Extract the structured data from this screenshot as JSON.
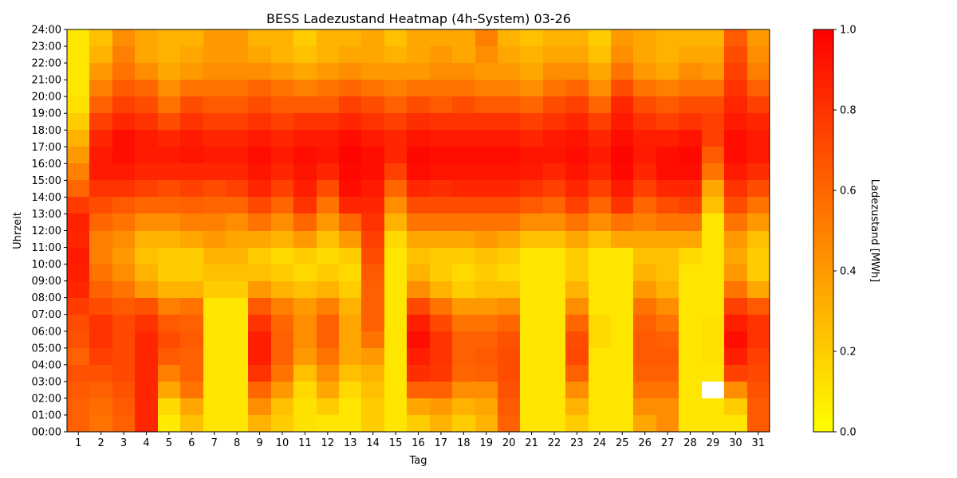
{
  "chart_data": {
    "type": "heatmap",
    "title": "BESS Ladezustand Heatmap (4h-System) 03-26",
    "xlabel": "Tag",
    "ylabel": "Uhrzeit",
    "colorbar_label": "Ladezustand [MWh]",
    "x_categories": [
      "1",
      "2",
      "3",
      "4",
      "5",
      "6",
      "7",
      "8",
      "9",
      "10",
      "11",
      "12",
      "13",
      "14",
      "15",
      "16",
      "17",
      "18",
      "19",
      "20",
      "21",
      "22",
      "23",
      "24",
      "25",
      "26",
      "27",
      "28",
      "29",
      "30",
      "31"
    ],
    "y_categories": [
      "00:00",
      "01:00",
      "02:00",
      "03:00",
      "04:00",
      "05:00",
      "06:00",
      "07:00",
      "08:00",
      "09:00",
      "10:00",
      "11:00",
      "12:00",
      "13:00",
      "14:00",
      "15:00",
      "16:00",
      "17:00",
      "18:00",
      "19:00",
      "20:00",
      "21:00",
      "22:00",
      "23:00",
      "24:00"
    ],
    "value_range": [
      0.0,
      1.0
    ],
    "colorbar_ticks": [
      "0.0",
      "0.2",
      "0.4",
      "0.6",
      "0.8",
      "1.0"
    ],
    "colormap": [
      "#ffff00",
      "#ff8000",
      "#ff0000"
    ],
    "grid": false,
    "legend": "colorbar-right",
    "values": [
      [
        0.62,
        0.62,
        0.65,
        0.68,
        0.62,
        0.68,
        0.7,
        0.77,
        0.85,
        0.88,
        0.9,
        0.85,
        0.87,
        0.77,
        0.6,
        0.5,
        0.4,
        0.3,
        0.2,
        0.12,
        0.1,
        0.1,
        0.1,
        0.1
      ],
      [
        0.55,
        0.58,
        0.62,
        0.68,
        0.75,
        0.8,
        0.8,
        0.7,
        0.62,
        0.55,
        0.5,
        0.5,
        0.6,
        0.7,
        0.8,
        0.9,
        0.9,
        0.85,
        0.75,
        0.62,
        0.5,
        0.4,
        0.3,
        0.25
      ],
      [
        0.62,
        0.65,
        0.68,
        0.72,
        0.72,
        0.72,
        0.72,
        0.65,
        0.55,
        0.45,
        0.4,
        0.45,
        0.55,
        0.65,
        0.8,
        0.9,
        0.95,
        0.95,
        0.85,
        0.75,
        0.65,
        0.55,
        0.5,
        0.45
      ],
      [
        0.85,
        0.85,
        0.85,
        0.85,
        0.85,
        0.85,
        0.8,
        0.68,
        0.4,
        0.3,
        0.25,
        0.3,
        0.45,
        0.6,
        0.75,
        0.85,
        0.9,
        0.9,
        0.8,
        0.7,
        0.6,
        0.45,
        0.35,
        0.35
      ],
      [
        0.08,
        0.15,
        0.35,
        0.5,
        0.65,
        0.7,
        0.65,
        0.5,
        0.3,
        0.2,
        0.2,
        0.3,
        0.45,
        0.6,
        0.7,
        0.85,
        0.9,
        0.85,
        0.7,
        0.55,
        0.45,
        0.35,
        0.3,
        0.3
      ],
      [
        0.25,
        0.35,
        0.55,
        0.62,
        0.62,
        0.65,
        0.62,
        0.55,
        0.3,
        0.2,
        0.2,
        0.35,
        0.5,
        0.62,
        0.75,
        0.85,
        0.92,
        0.9,
        0.8,
        0.7,
        0.55,
        0.4,
        0.35,
        0.3
      ],
      [
        0.1,
        0.1,
        0.1,
        0.1,
        0.1,
        0.1,
        0.1,
        0.1,
        0.2,
        0.25,
        0.3,
        0.4,
        0.5,
        0.6,
        0.7,
        0.85,
        0.9,
        0.85,
        0.75,
        0.65,
        0.55,
        0.45,
        0.4,
        0.4
      ],
      [
        0.1,
        0.1,
        0.1,
        0.1,
        0.1,
        0.1,
        0.1,
        0.1,
        0.2,
        0.25,
        0.3,
        0.35,
        0.45,
        0.6,
        0.75,
        0.85,
        0.9,
        0.85,
        0.75,
        0.65,
        0.55,
        0.45,
        0.4,
        0.4
      ],
      [
        0.3,
        0.45,
        0.6,
        0.8,
        0.88,
        0.88,
        0.8,
        0.65,
        0.4,
        0.25,
        0.2,
        0.35,
        0.55,
        0.72,
        0.85,
        0.92,
        0.95,
        0.9,
        0.8,
        0.7,
        0.6,
        0.45,
        0.35,
        0.3
      ],
      [
        0.2,
        0.25,
        0.4,
        0.55,
        0.62,
        0.62,
        0.6,
        0.5,
        0.3,
        0.2,
        0.15,
        0.3,
        0.45,
        0.6,
        0.75,
        0.85,
        0.9,
        0.85,
        0.75,
        0.65,
        0.55,
        0.4,
        0.3,
        0.3
      ],
      [
        0.12,
        0.12,
        0.15,
        0.25,
        0.4,
        0.45,
        0.45,
        0.4,
        0.25,
        0.15,
        0.2,
        0.4,
        0.6,
        0.8,
        0.88,
        0.92,
        0.95,
        0.9,
        0.8,
        0.65,
        0.5,
        0.35,
        0.25,
        0.2
      ],
      [
        0.1,
        0.2,
        0.35,
        0.45,
        0.55,
        0.62,
        0.62,
        0.5,
        0.3,
        0.2,
        0.15,
        0.25,
        0.4,
        0.55,
        0.7,
        0.85,
        0.92,
        0.9,
        0.8,
        0.65,
        0.55,
        0.4,
        0.3,
        0.3
      ],
      [
        0.1,
        0.1,
        0.15,
        0.25,
        0.35,
        0.35,
        0.35,
        0.3,
        0.2,
        0.15,
        0.2,
        0.4,
        0.6,
        0.85,
        0.95,
        0.97,
        0.98,
        0.95,
        0.85,
        0.75,
        0.6,
        0.45,
        0.35,
        0.3
      ],
      [
        0.2,
        0.2,
        0.25,
        0.3,
        0.4,
        0.55,
        0.62,
        0.62,
        0.62,
        0.65,
        0.7,
        0.75,
        0.8,
        0.85,
        0.9,
        0.95,
        0.95,
        0.9,
        0.8,
        0.7,
        0.55,
        0.4,
        0.35,
        0.35
      ],
      [
        0.1,
        0.1,
        0.1,
        0.1,
        0.1,
        0.1,
        0.1,
        0.1,
        0.1,
        0.1,
        0.1,
        0.15,
        0.3,
        0.45,
        0.6,
        0.75,
        0.85,
        0.85,
        0.75,
        0.62,
        0.5,
        0.4,
        0.3,
        0.25
      ],
      [
        0.2,
        0.35,
        0.62,
        0.82,
        0.88,
        0.95,
        0.88,
        0.72,
        0.45,
        0.3,
        0.25,
        0.35,
        0.55,
        0.7,
        0.85,
        0.95,
        0.97,
        0.92,
        0.82,
        0.7,
        0.55,
        0.4,
        0.35,
        0.35
      ],
      [
        0.3,
        0.4,
        0.62,
        0.78,
        0.8,
        0.8,
        0.72,
        0.55,
        0.3,
        0.2,
        0.2,
        0.35,
        0.55,
        0.7,
        0.82,
        0.92,
        0.95,
        0.9,
        0.8,
        0.65,
        0.55,
        0.45,
        0.4,
        0.35
      ],
      [
        0.2,
        0.3,
        0.45,
        0.6,
        0.62,
        0.62,
        0.55,
        0.4,
        0.2,
        0.15,
        0.2,
        0.35,
        0.55,
        0.7,
        0.85,
        0.92,
        0.95,
        0.9,
        0.8,
        0.7,
        0.55,
        0.45,
        0.35,
        0.35
      ],
      [
        0.3,
        0.35,
        0.45,
        0.62,
        0.65,
        0.62,
        0.55,
        0.4,
        0.25,
        0.2,
        0.25,
        0.4,
        0.55,
        0.7,
        0.85,
        0.92,
        0.95,
        0.9,
        0.8,
        0.65,
        0.5,
        0.4,
        0.45,
        0.5
      ],
      [
        0.62,
        0.65,
        0.68,
        0.7,
        0.7,
        0.68,
        0.6,
        0.45,
        0.25,
        0.15,
        0.2,
        0.35,
        0.55,
        0.7,
        0.85,
        0.92,
        0.95,
        0.9,
        0.8,
        0.65,
        0.5,
        0.4,
        0.35,
        0.3
      ],
      [
        0.1,
        0.1,
        0.1,
        0.1,
        0.1,
        0.1,
        0.1,
        0.1,
        0.1,
        0.1,
        0.1,
        0.25,
        0.45,
        0.65,
        0.8,
        0.9,
        0.92,
        0.85,
        0.75,
        0.6,
        0.45,
        0.35,
        0.3,
        0.25
      ],
      [
        0.1,
        0.1,
        0.1,
        0.1,
        0.1,
        0.1,
        0.1,
        0.1,
        0.1,
        0.1,
        0.1,
        0.25,
        0.45,
        0.6,
        0.75,
        0.85,
        0.92,
        0.9,
        0.8,
        0.7,
        0.55,
        0.45,
        0.35,
        0.3
      ],
      [
        0.2,
        0.3,
        0.45,
        0.62,
        0.72,
        0.7,
        0.6,
        0.45,
        0.3,
        0.2,
        0.2,
        0.35,
        0.55,
        0.75,
        0.85,
        0.92,
        0.95,
        0.92,
        0.85,
        0.75,
        0.6,
        0.45,
        0.35,
        0.3
      ],
      [
        0.1,
        0.1,
        0.1,
        0.1,
        0.1,
        0.15,
        0.15,
        0.1,
        0.1,
        0.1,
        0.1,
        0.25,
        0.45,
        0.6,
        0.75,
        0.85,
        0.9,
        0.85,
        0.75,
        0.6,
        0.45,
        0.35,
        0.25,
        0.2
      ],
      [
        0.1,
        0.1,
        0.1,
        0.1,
        0.1,
        0.1,
        0.1,
        0.1,
        0.1,
        0.1,
        0.1,
        0.35,
        0.55,
        0.8,
        0.9,
        0.97,
        0.98,
        0.95,
        0.9,
        0.85,
        0.7,
        0.55,
        0.45,
        0.4
      ],
      [
        0.35,
        0.45,
        0.55,
        0.62,
        0.65,
        0.65,
        0.62,
        0.55,
        0.4,
        0.3,
        0.25,
        0.35,
        0.5,
        0.6,
        0.75,
        0.85,
        0.9,
        0.88,
        0.8,
        0.7,
        0.55,
        0.4,
        0.35,
        0.35
      ],
      [
        0.45,
        0.45,
        0.55,
        0.62,
        0.65,
        0.62,
        0.55,
        0.45,
        0.3,
        0.25,
        0.25,
        0.35,
        0.55,
        0.7,
        0.85,
        0.95,
        0.95,
        0.88,
        0.75,
        0.65,
        0.5,
        0.35,
        0.3,
        0.3
      ],
      [
        0.1,
        0.1,
        0.1,
        0.1,
        0.1,
        0.1,
        0.1,
        0.1,
        0.1,
        0.1,
        0.15,
        0.35,
        0.55,
        0.75,
        0.85,
        0.95,
        0.97,
        0.92,
        0.8,
        0.7,
        0.55,
        0.45,
        0.35,
        0.3
      ],
      [
        0.1,
        0.1,
        null,
        0.1,
        0.12,
        0.12,
        0.12,
        0.1,
        0.1,
        0.1,
        0.1,
        0.1,
        0.1,
        0.25,
        0.35,
        0.55,
        0.65,
        0.75,
        0.75,
        0.7,
        0.55,
        0.4,
        0.35,
        0.3
      ],
      [
        0.1,
        0.2,
        0.45,
        0.75,
        0.88,
        0.95,
        0.88,
        0.75,
        0.55,
        0.4,
        0.35,
        0.4,
        0.55,
        0.7,
        0.8,
        0.9,
        0.95,
        0.95,
        0.9,
        0.85,
        0.8,
        0.75,
        0.7,
        0.65
      ],
      [
        0.65,
        0.65,
        0.68,
        0.72,
        0.75,
        0.8,
        0.8,
        0.65,
        0.35,
        0.2,
        0.2,
        0.25,
        0.4,
        0.55,
        0.7,
        0.82,
        0.9,
        0.9,
        0.85,
        0.75,
        0.62,
        0.5,
        0.45,
        0.4
      ]
    ]
  }
}
